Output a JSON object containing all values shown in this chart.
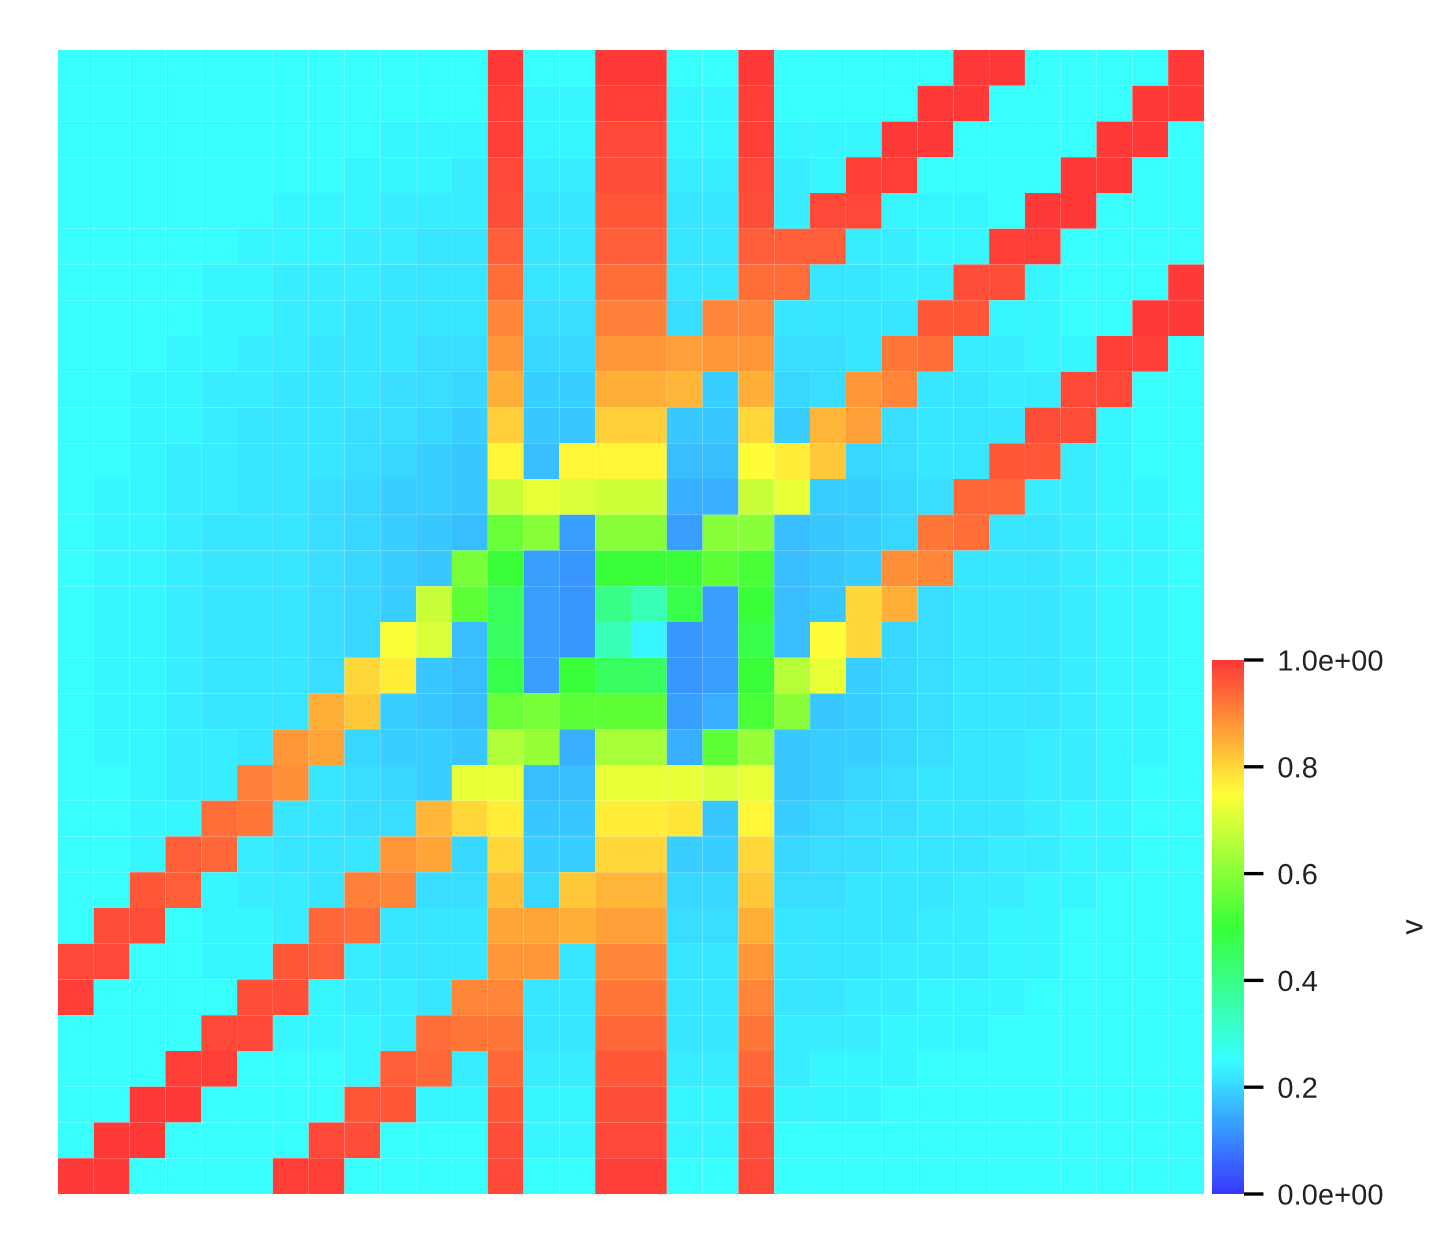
{
  "chart_data": {
    "type": "heatmap",
    "categories": [
      null,
      null,
      null,
      null,
      null,
      null,
      null,
      null,
      null,
      null,
      null,
      null,
      null,
      null,
      null,
      null,
      null,
      null,
      null,
      null,
      null,
      null,
      null,
      null,
      null,
      null,
      null,
      null,
      null,
      null,
      null,
      null
    ],
    "y_categories": [
      null,
      null,
      null,
      null,
      null,
      null,
      null,
      null,
      null,
      null,
      null,
      null,
      null,
      null,
      null,
      null,
      null,
      null,
      null,
      null,
      null,
      null,
      null,
      null,
      null,
      null,
      null,
      null,
      null,
      null,
      null,
      null
    ],
    "cells": [
      [
        0.25,
        0.25,
        0.25,
        0.25,
        0.25,
        0.25,
        0.25,
        0.25,
        0.25,
        0.25,
        0.25,
        0.25,
        1.0,
        0.25,
        0.25,
        1.0,
        1.0,
        0.25,
        0.25,
        1.0,
        0.25,
        0.25,
        0.25,
        0.25,
        0.25,
        1.0,
        1.0,
        0.25,
        0.25,
        0.25,
        0.25,
        1.0
      ],
      [
        0.25,
        0.25,
        0.25,
        0.25,
        0.25,
        0.25,
        0.25,
        0.25,
        0.25,
        0.25,
        0.25,
        0.25,
        0.99,
        0.24,
        0.24,
        0.99,
        0.99,
        0.24,
        0.24,
        0.99,
        0.25,
        0.25,
        0.25,
        0.25,
        1.0,
        1.0,
        0.25,
        0.25,
        0.25,
        0.25,
        1.0,
        1.0
      ],
      [
        0.25,
        0.25,
        0.25,
        0.25,
        0.25,
        0.25,
        0.25,
        0.25,
        0.25,
        0.24,
        0.24,
        0.24,
        0.99,
        0.24,
        0.24,
        0.98,
        0.98,
        0.24,
        0.24,
        0.99,
        0.24,
        0.24,
        0.24,
        1.0,
        1.0,
        0.25,
        0.25,
        0.25,
        0.25,
        1.0,
        1.0,
        0.25
      ],
      [
        0.25,
        0.25,
        0.25,
        0.25,
        0.25,
        0.25,
        0.25,
        0.25,
        0.24,
        0.24,
        0.24,
        0.23,
        0.98,
        0.23,
        0.23,
        0.97,
        0.97,
        0.23,
        0.23,
        0.98,
        0.23,
        0.24,
        0.99,
        0.99,
        0.25,
        0.25,
        0.25,
        0.25,
        1.0,
        1.0,
        0.25,
        0.25
      ],
      [
        0.25,
        0.25,
        0.25,
        0.25,
        0.25,
        0.25,
        0.24,
        0.24,
        0.24,
        0.23,
        0.23,
        0.23,
        0.97,
        0.22,
        0.22,
        0.96,
        0.96,
        0.22,
        0.22,
        0.97,
        0.23,
        0.98,
        0.98,
        0.24,
        0.24,
        0.24,
        0.25,
        1.0,
        1.0,
        0.25,
        0.25,
        0.25
      ],
      [
        0.25,
        0.25,
        0.25,
        0.25,
        0.25,
        0.24,
        0.24,
        0.24,
        0.23,
        0.23,
        0.22,
        0.22,
        0.95,
        0.22,
        0.22,
        0.95,
        0.95,
        0.22,
        0.22,
        0.95,
        0.95,
        0.95,
        0.23,
        0.23,
        0.24,
        0.24,
        0.99,
        0.99,
        0.25,
        0.25,
        0.25,
        0.25
      ],
      [
        0.25,
        0.25,
        0.25,
        0.25,
        0.24,
        0.24,
        0.23,
        0.23,
        0.23,
        0.22,
        0.22,
        0.22,
        0.93,
        0.22,
        0.22,
        0.93,
        0.93,
        0.22,
        0.22,
        0.93,
        0.93,
        0.22,
        0.22,
        0.23,
        0.23,
        0.97,
        0.97,
        0.24,
        0.25,
        0.25,
        0.25,
        1.0
      ],
      [
        0.25,
        0.25,
        0.25,
        0.25,
        0.24,
        0.24,
        0.23,
        0.23,
        0.22,
        0.22,
        0.22,
        0.22,
        0.9,
        0.21,
        0.21,
        0.91,
        0.91,
        0.21,
        0.9,
        0.9,
        0.22,
        0.22,
        0.22,
        0.22,
        0.96,
        0.96,
        0.24,
        0.24,
        0.25,
        0.25,
        1.0,
        1.0
      ],
      [
        0.25,
        0.25,
        0.25,
        0.24,
        0.24,
        0.23,
        0.23,
        0.22,
        0.22,
        0.22,
        0.21,
        0.21,
        0.88,
        0.2,
        0.2,
        0.88,
        0.88,
        0.87,
        0.88,
        0.88,
        0.21,
        0.21,
        0.22,
        0.92,
        0.93,
        0.23,
        0.23,
        0.24,
        0.24,
        0.99,
        0.99,
        0.25
      ],
      [
        0.25,
        0.25,
        0.24,
        0.24,
        0.23,
        0.23,
        0.22,
        0.22,
        0.22,
        0.21,
        0.21,
        0.2,
        0.85,
        0.19,
        0.19,
        0.85,
        0.85,
        0.84,
        0.19,
        0.85,
        0.2,
        0.21,
        0.88,
        0.9,
        0.22,
        0.22,
        0.23,
        0.23,
        0.98,
        0.98,
        0.25,
        0.25
      ],
      [
        0.25,
        0.25,
        0.24,
        0.24,
        0.23,
        0.22,
        0.22,
        0.22,
        0.21,
        0.21,
        0.2,
        0.19,
        0.81,
        0.18,
        0.18,
        0.81,
        0.81,
        0.18,
        0.18,
        0.8,
        0.19,
        0.84,
        0.87,
        0.21,
        0.22,
        0.22,
        0.22,
        0.97,
        0.97,
        0.24,
        0.25,
        0.25
      ],
      [
        0.25,
        0.25,
        0.24,
        0.23,
        0.23,
        0.22,
        0.22,
        0.22,
        0.21,
        0.2,
        0.19,
        0.18,
        0.76,
        0.17,
        0.76,
        0.76,
        0.76,
        0.17,
        0.17,
        0.75,
        0.77,
        0.82,
        0.2,
        0.21,
        0.22,
        0.22,
        0.96,
        0.96,
        0.23,
        0.24,
        0.25,
        0.25
      ],
      [
        0.25,
        0.24,
        0.24,
        0.23,
        0.23,
        0.22,
        0.22,
        0.21,
        0.2,
        0.19,
        0.19,
        0.18,
        0.68,
        0.72,
        0.7,
        0.69,
        0.69,
        0.15,
        0.15,
        0.68,
        0.72,
        0.19,
        0.19,
        0.2,
        0.21,
        0.94,
        0.94,
        0.23,
        0.23,
        0.24,
        0.24,
        0.25
      ],
      [
        0.25,
        0.24,
        0.24,
        0.23,
        0.22,
        0.22,
        0.22,
        0.21,
        0.2,
        0.19,
        0.18,
        0.17,
        0.56,
        0.6,
        0.13,
        0.6,
        0.6,
        0.13,
        0.6,
        0.6,
        0.17,
        0.18,
        0.19,
        0.2,
        0.92,
        0.93,
        0.22,
        0.22,
        0.23,
        0.24,
        0.24,
        0.25
      ],
      [
        0.25,
        0.24,
        0.24,
        0.23,
        0.22,
        0.22,
        0.22,
        0.21,
        0.2,
        0.19,
        0.18,
        0.58,
        0.5,
        0.13,
        0.12,
        0.5,
        0.5,
        0.5,
        0.55,
        0.52,
        0.17,
        0.18,
        0.19,
        0.89,
        0.9,
        0.22,
        0.22,
        0.22,
        0.23,
        0.24,
        0.24,
        0.25
      ],
      [
        0.25,
        0.24,
        0.24,
        0.23,
        0.22,
        0.22,
        0.22,
        0.21,
        0.2,
        0.19,
        0.68,
        0.55,
        0.46,
        0.13,
        0.12,
        0.4,
        0.34,
        0.48,
        0.13,
        0.5,
        0.17,
        0.18,
        0.8,
        0.85,
        0.21,
        0.22,
        0.22,
        0.22,
        0.23,
        0.24,
        0.24,
        0.25
      ],
      [
        0.25,
        0.24,
        0.24,
        0.23,
        0.22,
        0.22,
        0.22,
        0.21,
        0.2,
        0.74,
        0.7,
        0.17,
        0.45,
        0.13,
        0.12,
        0.34,
        0.24,
        0.12,
        0.13,
        0.48,
        0.17,
        0.75,
        0.8,
        0.2,
        0.21,
        0.22,
        0.22,
        0.22,
        0.23,
        0.24,
        0.24,
        0.25
      ],
      [
        0.25,
        0.24,
        0.24,
        0.23,
        0.22,
        0.22,
        0.22,
        0.21,
        0.8,
        0.77,
        0.18,
        0.17,
        0.48,
        0.13,
        0.5,
        0.45,
        0.45,
        0.12,
        0.13,
        0.5,
        0.66,
        0.72,
        0.19,
        0.2,
        0.21,
        0.22,
        0.22,
        0.22,
        0.23,
        0.24,
        0.24,
        0.25
      ],
      [
        0.25,
        0.24,
        0.24,
        0.23,
        0.22,
        0.22,
        0.22,
        0.85,
        0.82,
        0.19,
        0.18,
        0.17,
        0.56,
        0.58,
        0.55,
        0.55,
        0.55,
        0.13,
        0.15,
        0.52,
        0.6,
        0.18,
        0.19,
        0.2,
        0.21,
        0.22,
        0.22,
        0.22,
        0.23,
        0.24,
        0.24,
        0.25
      ],
      [
        0.25,
        0.24,
        0.24,
        0.23,
        0.23,
        0.22,
        0.88,
        0.86,
        0.2,
        0.19,
        0.19,
        0.18,
        0.65,
        0.62,
        0.15,
        0.64,
        0.64,
        0.15,
        0.55,
        0.62,
        0.18,
        0.19,
        0.19,
        0.2,
        0.21,
        0.22,
        0.22,
        0.23,
        0.23,
        0.24,
        0.24,
        0.25
      ],
      [
        0.25,
        0.25,
        0.24,
        0.23,
        0.23,
        0.91,
        0.89,
        0.22,
        0.21,
        0.2,
        0.19,
        0.72,
        0.72,
        0.17,
        0.17,
        0.72,
        0.72,
        0.72,
        0.7,
        0.72,
        0.18,
        0.19,
        0.2,
        0.21,
        0.22,
        0.22,
        0.22,
        0.23,
        0.23,
        0.24,
        0.25,
        0.25
      ],
      [
        0.25,
        0.25,
        0.24,
        0.24,
        0.93,
        0.92,
        0.22,
        0.22,
        0.21,
        0.21,
        0.84,
        0.8,
        0.77,
        0.18,
        0.18,
        0.77,
        0.77,
        0.78,
        0.18,
        0.76,
        0.19,
        0.2,
        0.21,
        0.21,
        0.22,
        0.22,
        0.22,
        0.23,
        0.24,
        0.24,
        0.25,
        0.25
      ],
      [
        0.25,
        0.25,
        0.24,
        0.95,
        0.94,
        0.23,
        0.22,
        0.22,
        0.22,
        0.88,
        0.86,
        0.2,
        0.8,
        0.19,
        0.19,
        0.8,
        0.8,
        0.19,
        0.19,
        0.8,
        0.2,
        0.21,
        0.21,
        0.22,
        0.22,
        0.22,
        0.23,
        0.23,
        0.24,
        0.24,
        0.25,
        0.25
      ],
      [
        0.25,
        0.25,
        0.96,
        0.95,
        0.24,
        0.23,
        0.23,
        0.22,
        0.91,
        0.9,
        0.21,
        0.21,
        0.83,
        0.2,
        0.82,
        0.84,
        0.84,
        0.2,
        0.2,
        0.82,
        0.21,
        0.21,
        0.22,
        0.22,
        0.22,
        0.23,
        0.23,
        0.24,
        0.24,
        0.25,
        0.25,
        0.25
      ],
      [
        0.25,
        0.97,
        0.97,
        0.25,
        0.24,
        0.24,
        0.23,
        0.94,
        0.93,
        0.22,
        0.22,
        0.22,
        0.86,
        0.86,
        0.85,
        0.87,
        0.87,
        0.21,
        0.21,
        0.85,
        0.22,
        0.22,
        0.22,
        0.22,
        0.23,
        0.23,
        0.24,
        0.24,
        0.25,
        0.25,
        0.25,
        0.25
      ],
      [
        0.98,
        0.98,
        0.25,
        0.25,
        0.24,
        0.24,
        0.96,
        0.95,
        0.23,
        0.22,
        0.22,
        0.22,
        0.88,
        0.88,
        0.22,
        0.9,
        0.9,
        0.22,
        0.22,
        0.88,
        0.22,
        0.22,
        0.22,
        0.23,
        0.23,
        0.23,
        0.24,
        0.24,
        0.25,
        0.25,
        0.25,
        0.25
      ],
      [
        0.99,
        0.25,
        0.25,
        0.25,
        0.25,
        0.97,
        0.97,
        0.24,
        0.23,
        0.23,
        0.22,
        0.9,
        0.9,
        0.22,
        0.22,
        0.92,
        0.92,
        0.22,
        0.22,
        0.9,
        0.22,
        0.22,
        0.23,
        0.23,
        0.24,
        0.24,
        0.24,
        0.25,
        0.25,
        0.25,
        0.25,
        0.25
      ],
      [
        0.25,
        0.25,
        0.25,
        0.25,
        0.98,
        0.98,
        0.24,
        0.24,
        0.24,
        0.23,
        0.93,
        0.92,
        0.92,
        0.22,
        0.22,
        0.94,
        0.94,
        0.22,
        0.22,
        0.92,
        0.23,
        0.23,
        0.23,
        0.24,
        0.24,
        0.24,
        0.25,
        0.25,
        0.25,
        0.25,
        0.25,
        0.25
      ],
      [
        0.25,
        0.25,
        0.25,
        0.99,
        0.99,
        0.25,
        0.25,
        0.25,
        0.24,
        0.95,
        0.94,
        0.23,
        0.94,
        0.23,
        0.23,
        0.96,
        0.96,
        0.23,
        0.23,
        0.94,
        0.23,
        0.24,
        0.24,
        0.24,
        0.25,
        0.25,
        0.25,
        0.25,
        0.25,
        0.25,
        0.25,
        0.25
      ],
      [
        0.25,
        0.25,
        1.0,
        1.0,
        0.25,
        0.25,
        0.25,
        0.25,
        0.96,
        0.96,
        0.24,
        0.24,
        0.96,
        0.24,
        0.24,
        0.97,
        0.97,
        0.24,
        0.24,
        0.96,
        0.24,
        0.24,
        0.24,
        0.25,
        0.25,
        0.25,
        0.25,
        0.25,
        0.25,
        0.25,
        0.25,
        0.25
      ],
      [
        0.25,
        1.0,
        1.0,
        0.25,
        0.25,
        0.25,
        0.25,
        0.98,
        0.97,
        0.25,
        0.25,
        0.25,
        0.97,
        0.24,
        0.24,
        0.98,
        0.98,
        0.24,
        0.24,
        0.97,
        0.25,
        0.25,
        0.25,
        0.25,
        0.25,
        0.25,
        0.25,
        0.25,
        0.25,
        0.25,
        0.25,
        0.25
      ],
      [
        1.0,
        1.0,
        0.25,
        0.25,
        0.25,
        0.25,
        0.99,
        0.99,
        0.25,
        0.25,
        0.25,
        0.25,
        0.98,
        0.25,
        0.25,
        0.99,
        0.99,
        0.25,
        0.25,
        0.98,
        0.25,
        0.25,
        0.25,
        0.25,
        0.25,
        0.25,
        0.25,
        0.25,
        0.25,
        0.25,
        0.25,
        0.25
      ]
    ],
    "clabel": "v",
    "clim": [
      0,
      1
    ],
    "cticks": [
      {
        "value": 0,
        "label": "0.0e+00"
      },
      0.2,
      0.4,
      0.6,
      0.8,
      {
        "value": 1,
        "label": "1.0e+00"
      }
    ]
  }
}
